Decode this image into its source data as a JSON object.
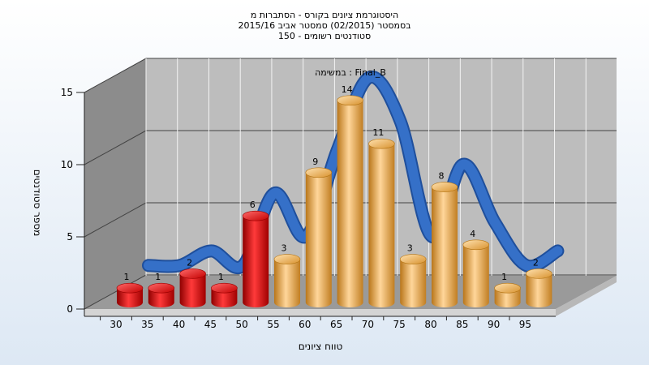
{
  "chart_data": {
    "type": "bar",
    "title_lines": [
      "היסטוגרמת ציונים בקורס - הסתברות מ",
      "בסמסטר  (02/2015)  סמסטר אביב 2015/16",
      "סטודנטים רשומים - 150"
    ],
    "annotation": "במשימה : Final_B",
    "xlabel": "טווח ציונים",
    "ylabel": "מספר סטודנטים",
    "x_ticks": [
      "30",
      "35",
      "40",
      "45",
      "50",
      "55",
      "60",
      "65",
      "70",
      "75",
      "80",
      "85",
      "90",
      "95"
    ],
    "y_ticks": [
      "0",
      "5",
      "10",
      "15"
    ],
    "ylim": [
      0,
      15
    ],
    "grid": true,
    "categories": [
      "30",
      "35",
      "40",
      "45",
      "50",
      "55",
      "60",
      "65",
      "70",
      "75",
      "80",
      "85",
      "90",
      "95"
    ],
    "values": [
      1,
      1,
      2,
      1,
      6,
      3,
      9,
      14,
      11,
      3,
      8,
      4,
      1,
      2
    ],
    "labels": [
      "1",
      "1",
      "2",
      "1",
      "6",
      "3",
      "9",
      "14",
      "11",
      "3",
      "8",
      "4",
      "1",
      "2"
    ],
    "colors": [
      "red",
      "red",
      "red",
      "red",
      "red",
      "orange",
      "orange",
      "orange",
      "orange",
      "orange",
      "orange",
      "orange",
      "orange",
      "orange"
    ],
    "curve": {
      "type": "smoothed-line",
      "values": [
        1,
        1,
        2,
        1,
        6,
        3,
        9,
        14,
        11,
        3,
        8,
        4,
        1,
        2
      ],
      "color": "#3570c8"
    },
    "palette": {
      "red": "#e81818",
      "orange": "#f2b24a",
      "back_wall": "#bdbdbd",
      "side_wall": "#8c8c8c",
      "floor": "#999999"
    }
  }
}
